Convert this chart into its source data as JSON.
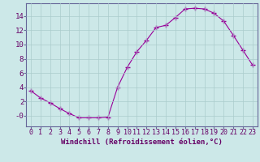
{
  "x": [
    0,
    1,
    2,
    3,
    4,
    5,
    6,
    7,
    8,
    9,
    10,
    11,
    12,
    13,
    14,
    15,
    16,
    17,
    18,
    19,
    20,
    21,
    22,
    23
  ],
  "y": [
    3.5,
    2.5,
    1.8,
    1.0,
    0.3,
    -0.3,
    -0.3,
    -0.3,
    -0.2,
    4.0,
    6.8,
    9.0,
    10.6,
    12.4,
    12.7,
    13.8,
    15.0,
    15.1,
    15.0,
    14.4,
    13.3,
    11.3,
    9.2,
    7.1
  ],
  "line_color": "#990099",
  "marker": "+",
  "marker_size": 4,
  "bg_color": "#cce8e8",
  "grid_color": "#aacccc",
  "xlabel": "Windchill (Refroidissement éolien,°C)",
  "xlim": [
    -0.5,
    23.5
  ],
  "ylim": [
    -1.5,
    15.8
  ],
  "yticks": [
    0,
    2,
    4,
    6,
    8,
    10,
    12,
    14
  ],
  "ytick_labels": [
    "-0",
    "2",
    "4",
    "6",
    "8",
    "10",
    "12",
    "14"
  ],
  "xticks": [
    0,
    1,
    2,
    3,
    4,
    5,
    6,
    7,
    8,
    9,
    10,
    11,
    12,
    13,
    14,
    15,
    16,
    17,
    18,
    19,
    20,
    21,
    22,
    23
  ],
  "tick_color": "#660066",
  "label_color": "#660066",
  "spine_color": "#666699",
  "font_size": 6.5
}
